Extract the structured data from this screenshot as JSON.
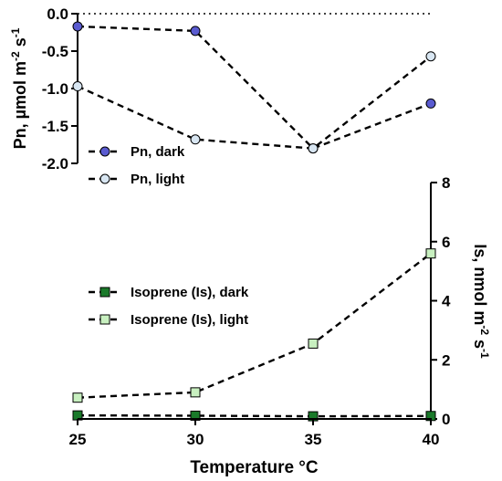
{
  "chart_data": [
    {
      "type": "line",
      "ylabel": "Pn, µmol m-2 s-1",
      "ylabel_parts": [
        "Pn, µmol m",
        "-2",
        " s",
        "-1"
      ],
      "ylim": [
        -2.0,
        0.0
      ],
      "yticks": [
        "0.0",
        "-0.5",
        "-1.0",
        "-1.5",
        "-2.0"
      ],
      "ytick_values": [
        0,
        -0.5,
        -1.0,
        -1.5,
        -2.0
      ],
      "reference_line": 0,
      "x": [
        25,
        30,
        35,
        40
      ],
      "series": [
        {
          "name": "Pn, dark",
          "marker": "circle",
          "color": "#5a5bd0",
          "values": [
            -0.17,
            -0.23,
            -1.8,
            -1.2
          ]
        },
        {
          "name": "Pn, light",
          "marker": "circle",
          "color": "#d8e6f2",
          "values": [
            -0.97,
            -1.68,
            -1.8,
            -0.57
          ]
        }
      ],
      "legend_position": "bottom-left"
    },
    {
      "type": "line",
      "ylabel": "Is, nmol m-2 s-1",
      "ylabel_parts": [
        "Is, nmol m",
        "-2",
        " s",
        "-1"
      ],
      "ylim": [
        0,
        8
      ],
      "yticks": [
        "0",
        "2",
        "4",
        "6",
        "8"
      ],
      "ytick_values": [
        0,
        2,
        4,
        6,
        8
      ],
      "y_axis_side": "right",
      "xlabel": "Temperature °C",
      "xlim": [
        25,
        40
      ],
      "xticks": [
        "25",
        "30",
        "35",
        "40"
      ],
      "x": [
        25,
        30,
        35,
        40
      ],
      "series": [
        {
          "name": "Isoprene (Is), dark",
          "marker": "square",
          "color": "#1a7a2a",
          "values": [
            0.12,
            0.11,
            0.09,
            0.1
          ]
        },
        {
          "name": "Isoprene (Is), light",
          "marker": "square",
          "color": "#c8f0c0",
          "values": [
            0.72,
            0.9,
            2.55,
            5.6
          ]
        }
      ],
      "legend_position": "middle-left"
    }
  ]
}
